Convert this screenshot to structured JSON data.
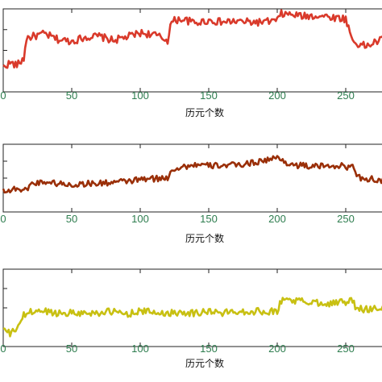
{
  "chart_data": [
    {
      "type": "line",
      "xlabel": "历元个数",
      "xlim": [
        0,
        280
      ],
      "ylim": [
        0,
        10
      ],
      "xticks": [
        0,
        50,
        100,
        150,
        200,
        250
      ],
      "tick_labels": [
        "0",
        "50",
        "100",
        "150",
        "200",
        "250"
      ],
      "color": "#d93a2b",
      "x": [
        0,
        5,
        10,
        15,
        17,
        20,
        30,
        40,
        50,
        60,
        70,
        80,
        90,
        100,
        110,
        120,
        122,
        125,
        130,
        140,
        150,
        160,
        170,
        180,
        190,
        200,
        203,
        210,
        220,
        230,
        250,
        255,
        258,
        265,
        280
      ],
      "values": [
        3.0,
        3.5,
        3.2,
        4.0,
        6.5,
        6.6,
        7.0,
        6.3,
        6.1,
        6.6,
        6.7,
        6.2,
        6.6,
        7.1,
        6.9,
        6.2,
        8.1,
        8.6,
        8.8,
        8.3,
        8.6,
        8.4,
        8.5,
        8.4,
        8.4,
        8.6,
        9.4,
        9.3,
        9.1,
        9.2,
        8.8,
        6.2,
        5.8,
        5.5,
        6.6
      ]
    },
    {
      "type": "line",
      "xlabel": "历元个数",
      "xlim": [
        0,
        280
      ],
      "ylim": [
        0,
        10
      ],
      "xticks": [
        0,
        50,
        100,
        150,
        200,
        250
      ],
      "tick_labels": [
        "0",
        "50",
        "100",
        "150",
        "200",
        "250"
      ],
      "color": "#9a2f08",
      "x": [
        0,
        5,
        10,
        15,
        20,
        30,
        40,
        50,
        60,
        70,
        80,
        90,
        100,
        110,
        120,
        122,
        125,
        130,
        140,
        150,
        160,
        170,
        180,
        190,
        200,
        210,
        220,
        230,
        240,
        255,
        260,
        270,
        280
      ],
      "values": [
        3.3,
        3.1,
        3.6,
        3.0,
        4.1,
        4.5,
        4.2,
        4.0,
        4.2,
        4.2,
        4.4,
        4.5,
        4.8,
        4.9,
        5.0,
        6.1,
        6.4,
        6.6,
        7.0,
        6.8,
        6.9,
        6.9,
        7.2,
        7.6,
        8.0,
        7.0,
        6.8,
        6.7,
        6.9,
        6.6,
        5.1,
        4.8,
        4.4
      ]
    },
    {
      "type": "line",
      "xlabel": "历元个数",
      "xlim": [
        0,
        280
      ],
      "ylim": [
        0,
        10
      ],
      "xticks": [
        0,
        50,
        100,
        150,
        200,
        250
      ],
      "tick_labels": [
        "0",
        "50",
        "100",
        "150",
        "200",
        "250"
      ],
      "color": "#c8c012",
      "x": [
        0,
        5,
        8,
        10,
        15,
        20,
        30,
        40,
        50,
        60,
        70,
        80,
        90,
        100,
        110,
        120,
        130,
        140,
        150,
        160,
        170,
        180,
        190,
        200,
        202,
        205,
        210,
        220,
        240,
        255,
        258,
        270,
        280
      ],
      "values": [
        2.3,
        1.6,
        2.0,
        2.5,
        4.0,
        4.5,
        4.6,
        4.3,
        4.4,
        4.3,
        4.4,
        4.5,
        4.2,
        4.6,
        4.4,
        4.3,
        4.5,
        4.3,
        4.6,
        4.3,
        4.6,
        4.5,
        4.6,
        4.5,
        5.6,
        6.2,
        6.0,
        5.8,
        5.6,
        5.9,
        4.8,
        4.9,
        5.1
      ]
    }
  ]
}
